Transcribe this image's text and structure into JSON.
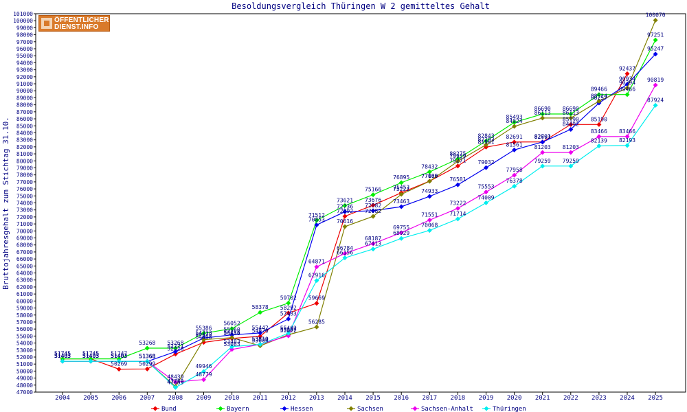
{
  "logo": {
    "line1": "ÖFFENTLICHER",
    "line2": "DIENST.INFO"
  },
  "chart_data": {
    "type": "line",
    "title": "Besoldungsvergleich Thüringen W 2 gemitteltes Gehalt",
    "ylabel": "Bruttojahresgehalt zum Stichtag 31.10.",
    "xlabel": "",
    "categories": [
      "2004",
      "2005",
      "2006",
      "2007",
      "2008",
      "2009",
      "2010",
      "2011",
      "2012",
      "2013",
      "2014",
      "2015",
      "2016",
      "2017",
      "2018",
      "2019",
      "2020",
      "2021",
      "2022",
      "2023",
      "2024",
      "2025"
    ],
    "ylim": [
      47000,
      101000
    ],
    "ytick_step": 1000,
    "grid": false,
    "legend_position": "bottom",
    "series": [
      {
        "name": "Bund",
        "color": "#ee0000",
        "values": [
          51745,
          51745,
          50269,
          50299,
          52420,
          54098,
          54656,
          54970,
          58292,
          59669,
          72092,
          73676,
          75453,
          77109,
          79271,
          81961,
          82691,
          82703,
          85190,
          85190,
          92437,
          null
        ]
      },
      {
        "name": "Bayern",
        "color": "#00ee00",
        "values": [
          51745,
          51745,
          51747,
          53268,
          53268,
          55386,
          56052,
          58378,
          59702,
          71512,
          73621,
          75166,
          76895,
          78432,
          80275,
          82843,
          85493,
          86690,
          86690,
          89466,
          89466,
          97251
        ]
      },
      {
        "name": "Hessen",
        "color": "#0000ee",
        "values": [
          51403,
          51403,
          51403,
          51368,
          52771,
          54713,
          55160,
          55442,
          57433,
          70853,
          72736,
          72882,
          73463,
          74933,
          76581,
          79032,
          81561,
          82691,
          84492,
          88257,
          90934,
          95247
        ]
      },
      {
        "name": "Sachsen",
        "color": "#808000",
        "values": [
          51403,
          51403,
          51403,
          51368,
          47789,
          54479,
          54775,
          53604,
          55187,
          56285,
          70616,
          72082,
          75221,
          77086,
          79939,
          82293,
          84924,
          86113,
          86113,
          88524,
          90394,
          100070
        ]
      },
      {
        "name": "Sachsen-Anhalt",
        "color": "#ee00ee",
        "values": [
          51403,
          51403,
          51403,
          51368,
          48439,
          48779,
          53083,
          53810,
          55022,
          64871,
          66784,
          68187,
          69755,
          71551,
          73222,
          75553,
          77958,
          81203,
          81203,
          83466,
          83466,
          90819
        ]
      },
      {
        "name": "Thüringen",
        "color": "#00eeee",
        "values": [
          51403,
          51403,
          51403,
          51368,
          47659,
          49946,
          53483,
          53810,
          55402,
          62916,
          66156,
          67413,
          68929,
          70068,
          71714,
          74009,
          76378,
          79259,
          79259,
          82139,
          82193,
          87924
        ]
      }
    ]
  }
}
